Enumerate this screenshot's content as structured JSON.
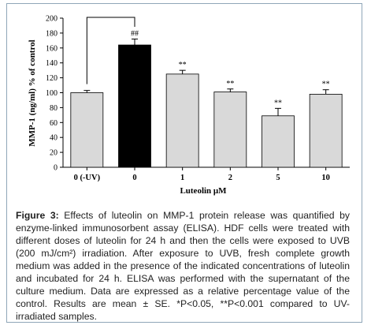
{
  "chart_data": {
    "type": "bar",
    "categories": [
      "0 (-UV)",
      "0",
      "1",
      "2",
      "5",
      "10"
    ],
    "values": [
      100,
      164,
      125,
      101,
      69,
      98
    ],
    "errors": [
      3,
      8,
      5,
      4,
      10,
      6
    ],
    "annotations": [
      "",
      "##",
      "**",
      "**",
      "**",
      "**"
    ],
    "bar_colors": [
      "#d9d9d9",
      "#000000",
      "#d9d9d9",
      "#d9d9d9",
      "#d9d9d9",
      "#d9d9d9"
    ],
    "xlabel": "Luteolin μM",
    "ylabel": "MMP-1 (ng/ml) % of control",
    "ylim": [
      0,
      200
    ],
    "yticks": [
      0,
      20,
      40,
      60,
      80,
      100,
      120,
      140,
      160,
      180,
      200
    ],
    "bracket": [
      "0 (-UV)",
      "0"
    ],
    "grid": false
  },
  "caption": {
    "label": "Figure 3:",
    "text": " Effects of luteolin on MMP-1 protein release was quantified by enzyme-linked immunosorbent assay (ELISA). HDF cells were treated with different doses of luteolin for 24 h and then the cells were exposed to UVB (200 mJ/cm²) irradiation. After exposure to UVB, fresh complete growth medium was added in the presence of the indicated concentrations of luteolin and incubated for 24 h. ELISA was performed with the supernatant of the culture medium. Data are expressed as a relative percentage value of the control. Results are mean ± SE. *P<0.05, **P<0.001 compared to UV-irradiated samples."
  }
}
